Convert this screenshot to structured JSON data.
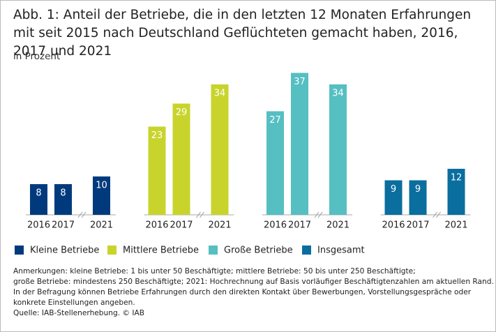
{
  "chart_data": {
    "type": "bar",
    "title": "Abb. 1: Anteil der Betriebe, die in den letzten 12 Monaten Erfahrungen mit seit 2015 nach Deutschland Geflüchteten gemacht haben, 2016, 2017 und 2021",
    "subtitle": "in Prozent",
    "categories": [
      "2016",
      "2017",
      "2021"
    ],
    "series": [
      {
        "name": "Kleine Betriebe",
        "color": "#003a7d",
        "values": [
          8,
          8,
          10
        ]
      },
      {
        "name": "Mittlere Betriebe",
        "color": "#c8d42c",
        "values": [
          23,
          29,
          34
        ]
      },
      {
        "name": "Große Betriebe",
        "color": "#55bfc2",
        "values": [
          27,
          37,
          34
        ]
      },
      {
        "name": "Insgesamt",
        "color": "#0a6e9e",
        "values": [
          9,
          9,
          12
        ]
      }
    ],
    "notes": [
      "Anmerkungen: kleine Betriebe: 1 bis unter 50 Beschäftigte; mittlere Betriebe: 50 bis unter 250 Beschäftigte;",
      "große Betriebe: mindestens 250 Beschäftigte; 2021: Hochrechnung auf Basis vorläufiger Beschäftigtenzahlen am aktuellen Rand.",
      "In der Befragung können Betriebe Erfahrungen durch den direkten Kontakt über Bewerbungen, Vorstellungsgespräche oder",
      "konkrete Einstellungen angeben."
    ],
    "source": "Quelle: IAB-Stellenerhebung. © IAB"
  }
}
